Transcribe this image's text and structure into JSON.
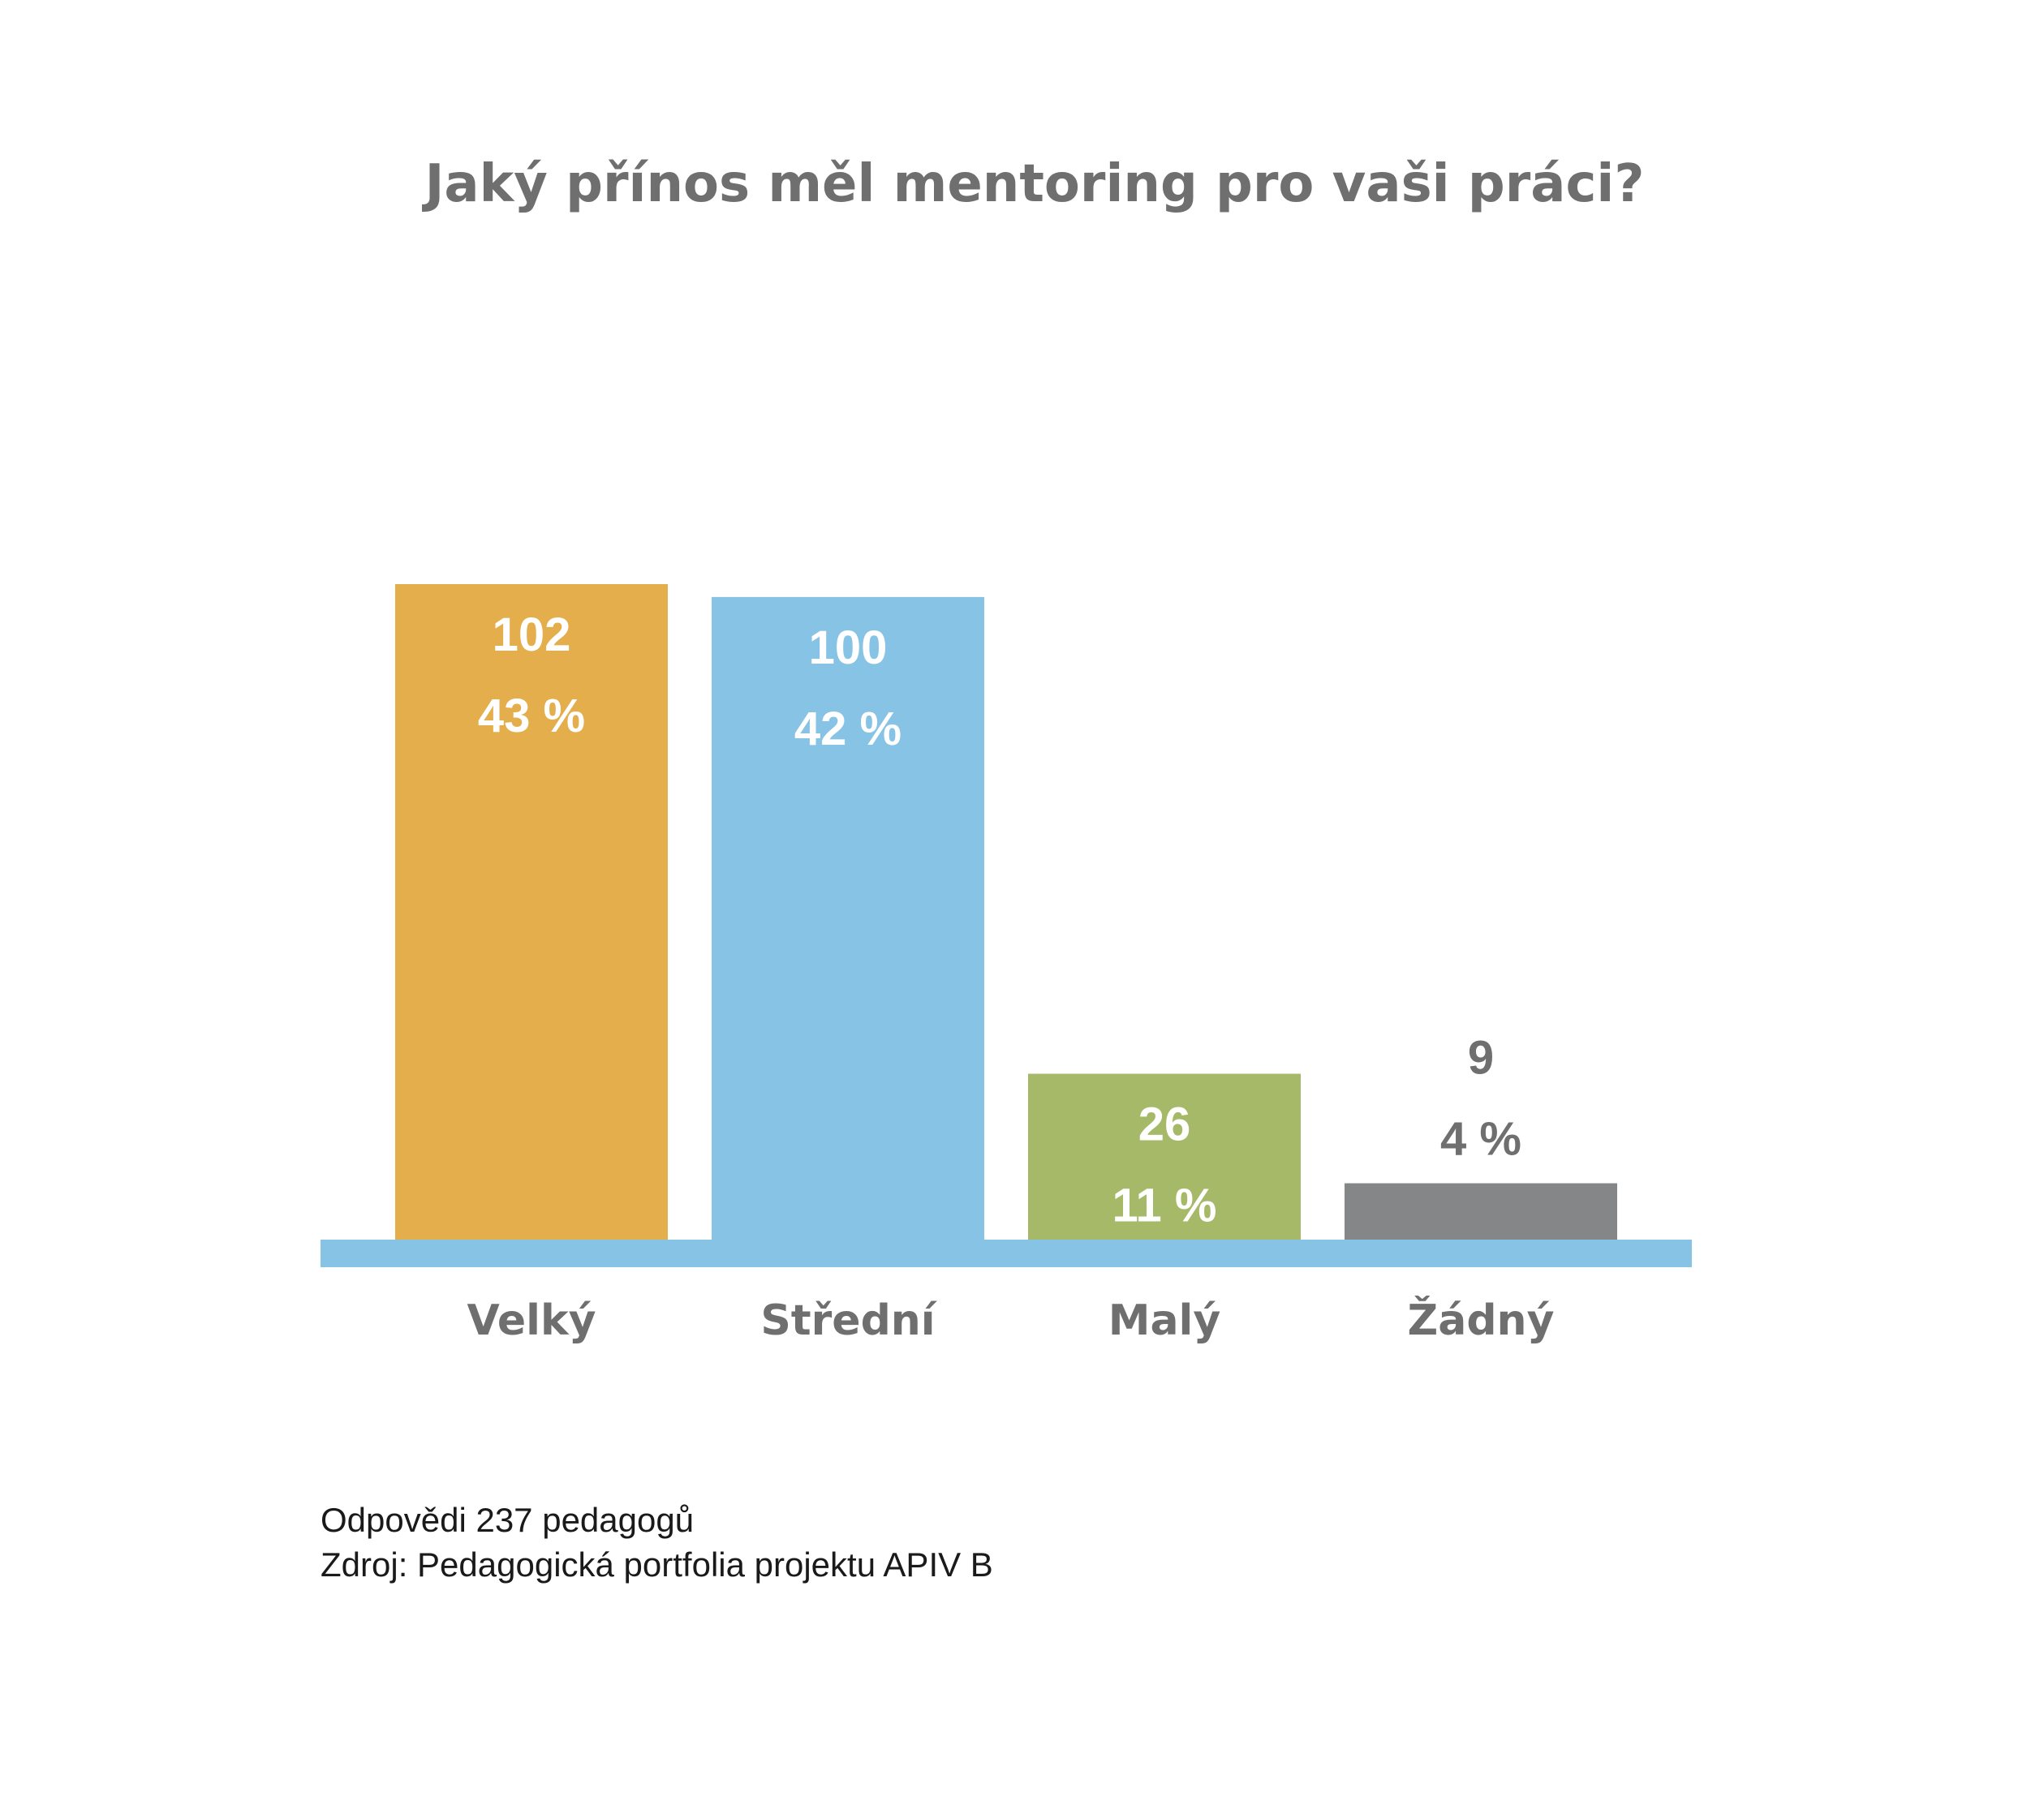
{
  "chart_data": {
    "type": "bar",
    "title": "Jaký přínos měl mentoring pro vaši práci?",
    "categories": [
      "Velký",
      "Střední",
      "Malý",
      "Žádný"
    ],
    "values": [
      102,
      100,
      26,
      9
    ],
    "percent_labels": [
      "43 %",
      "42 %",
      "11 %",
      "4 %"
    ],
    "colors": [
      "#e4ae4c",
      "#86c3e5",
      "#a6b968",
      "#858688"
    ],
    "label_colors": [
      "#ffffff",
      "#ffffff",
      "#ffffff",
      "#6f6f6f"
    ],
    "baseline_color": "#86c3e5",
    "xlabel": "",
    "ylabel": "",
    "ylim": [
      0,
      102
    ],
    "grid": false,
    "legend": "none"
  },
  "notes": {
    "responses": "Odpovědi 237 pedagogů",
    "source": "Zdroj: Pedagogická portfolia projektu APIV B"
  }
}
